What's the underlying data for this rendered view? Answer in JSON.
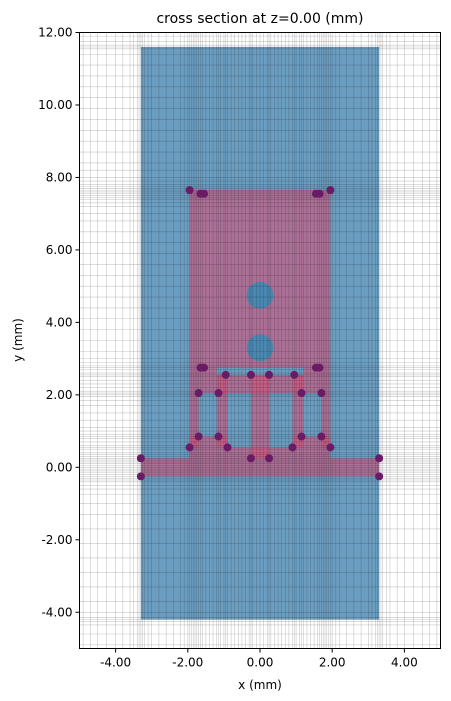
{
  "chart_data": {
    "type": "scatter",
    "title": "cross section at z=0.00 (mm)",
    "xlabel": "x (mm)",
    "ylabel": "y (mm)",
    "xlim": [
      -5.0,
      5.0
    ],
    "ylim": [
      -5.0,
      12.0
    ],
    "xticks": [
      -4.0,
      -2.0,
      0.0,
      2.0,
      4.0
    ],
    "xtick_labels": [
      "-4.00",
      "-2.00",
      "0.00",
      "2.00",
      "4.00"
    ],
    "yticks": [
      -4.0,
      -2.0,
      0.0,
      2.0,
      4.0,
      6.0,
      8.0,
      10.0,
      12.0
    ],
    "ytick_labels": [
      "-4.00",
      "-2.00",
      "0.00",
      "2.00",
      "4.00",
      "6.00",
      "8.00",
      "10.00",
      "12.00"
    ],
    "grid": true,
    "substrate": {
      "x": [
        -3.3,
        3.3
      ],
      "y": [
        -4.2,
        11.6
      ],
      "color": "#4a88b2"
    },
    "metal_color": "#d6517a",
    "via_color": "#4a88b2",
    "metal_polygons": [
      {
        "x": [
          -3.3,
          3.3
        ],
        "y": [
          -0.25,
          0.25
        ]
      },
      {
        "x": [
          -1.95,
          1.95
        ],
        "y": [
          2.75,
          7.65
        ]
      },
      {
        "x": [
          -1.95,
          -1.7
        ],
        "y": [
          0.55,
          2.75
        ]
      },
      {
        "x": [
          1.7,
          1.95
        ],
        "y": [
          0.55,
          2.75
        ]
      },
      {
        "x": [
          -1.95,
          -0.9
        ],
        "y": [
          0.55,
          0.85
        ]
      },
      {
        "x": [
          0.9,
          1.95
        ],
        "y": [
          0.55,
          0.85
        ]
      },
      {
        "x": [
          -1.2,
          -0.9
        ],
        "y": [
          0.55,
          2.55
        ]
      },
      {
        "x": [
          0.9,
          1.2
        ],
        "y": [
          0.55,
          2.55
        ]
      },
      {
        "x": [
          -1.2,
          1.2
        ],
        "y": [
          2.05,
          2.55
        ]
      },
      {
        "x": [
          -0.25,
          0.25
        ],
        "y": [
          0.25,
          2.55
        ]
      },
      {
        "x": [
          -1.7,
          -1.2
        ],
        "y": [
          2.05,
          2.75
        ]
      },
      {
        "x": [
          1.2,
          1.7
        ],
        "y": [
          2.05,
          2.75
        ]
      },
      {
        "x": [
          -1.95,
          1.95
        ],
        "y": [
          0.25,
          0.55
        ]
      }
    ],
    "vias": [
      {
        "x": 0.0,
        "y": 4.75,
        "r": 0.37
      },
      {
        "x": 0.0,
        "y": 3.3,
        "r": 0.37
      }
    ],
    "series": [
      {
        "marker_color": "#6a1b66",
        "x": [
          -3.3,
          -3.3,
          3.3,
          3.3,
          -1.95,
          1.95,
          -1.65,
          -1.55,
          1.55,
          1.65,
          -1.65,
          -1.55,
          1.55,
          1.65,
          -0.95,
          -0.25,
          0.25,
          0.95,
          -1.7,
          -1.15,
          1.15,
          1.7,
          -1.7,
          -1.15,
          1.15,
          1.7,
          -1.95,
          -0.9,
          0.9,
          1.95,
          -0.25,
          0.25
        ],
        "y": [
          0.25,
          -0.25,
          0.25,
          -0.25,
          7.65,
          7.65,
          7.55,
          7.55,
          7.55,
          7.55,
          2.75,
          2.75,
          2.75,
          2.75,
          2.55,
          2.55,
          2.55,
          2.55,
          2.05,
          2.05,
          2.05,
          2.05,
          0.85,
          0.85,
          0.85,
          0.85,
          0.55,
          0.55,
          0.55,
          0.55,
          0.25,
          0.25
        ]
      }
    ],
    "mesh_x": [
      -4.9,
      -4.7,
      -4.5,
      -4.25,
      -4.0,
      -3.8,
      -3.6,
      -3.5,
      -3.4,
      -3.35,
      -3.3,
      -3.25,
      -3.2,
      -3.1,
      -3.0,
      -2.8,
      -2.6,
      -2.4,
      -2.2,
      -2.1,
      -2.0,
      -1.95,
      -1.9,
      -1.85,
      -1.8,
      -1.75,
      -1.7,
      -1.65,
      -1.6,
      -1.5,
      -1.4,
      -1.3,
      -1.2,
      -1.15,
      -1.1,
      -1.0,
      -0.95,
      -0.9,
      -0.8,
      -0.7,
      -0.6,
      -0.5,
      -0.4,
      -0.3,
      -0.25,
      -0.2,
      -0.1,
      0.0,
      0.1,
      0.2,
      0.25,
      0.3,
      0.4,
      0.5,
      0.6,
      0.7,
      0.8,
      0.9,
      0.95,
      1.0,
      1.1,
      1.15,
      1.2,
      1.3,
      1.4,
      1.5,
      1.6,
      1.65,
      1.7,
      1.75,
      1.8,
      1.85,
      1.9,
      1.95,
      2.0,
      2.1,
      2.2,
      2.4,
      2.6,
      2.8,
      3.0,
      3.1,
      3.2,
      3.25,
      3.3,
      3.35,
      3.4,
      3.5,
      3.6,
      3.8,
      4.0,
      4.25,
      4.5,
      4.7,
      4.9
    ],
    "mesh_y": [
      -4.9,
      -4.6,
      -4.35,
      -4.25,
      -4.2,
      -4.15,
      -4.0,
      -3.7,
      -3.3,
      -2.9,
      -2.5,
      -2.1,
      -1.7,
      -1.3,
      -1.0,
      -0.75,
      -0.6,
      -0.5,
      -0.4,
      -0.35,
      -0.3,
      -0.25,
      -0.2,
      -0.15,
      -0.1,
      -0.05,
      0.0,
      0.05,
      0.1,
      0.15,
      0.2,
      0.25,
      0.3,
      0.35,
      0.4,
      0.5,
      0.55,
      0.6,
      0.7,
      0.8,
      0.85,
      0.9,
      1.0,
      1.1,
      1.3,
      1.5,
      1.7,
      1.85,
      1.95,
      2.0,
      2.05,
      2.1,
      2.2,
      2.3,
      2.4,
      2.5,
      2.55,
      2.6,
      2.7,
      2.75,
      2.8,
      2.9,
      3.0,
      3.2,
      3.5,
      3.8,
      4.1,
      4.4,
      4.7,
      5.0,
      5.3,
      5.6,
      5.9,
      6.2,
      6.5,
      6.8,
      7.0,
      7.2,
      7.3,
      7.4,
      7.45,
      7.5,
      7.55,
      7.6,
      7.65,
      7.7,
      7.75,
      7.8,
      7.9,
      8.0,
      8.2,
      8.4,
      8.7,
      9.0,
      9.3,
      9.6,
      9.9,
      10.2,
      10.5,
      10.8,
      11.1,
      11.4,
      11.55,
      11.6,
      11.65,
      11.75,
      11.9
    ]
  }
}
